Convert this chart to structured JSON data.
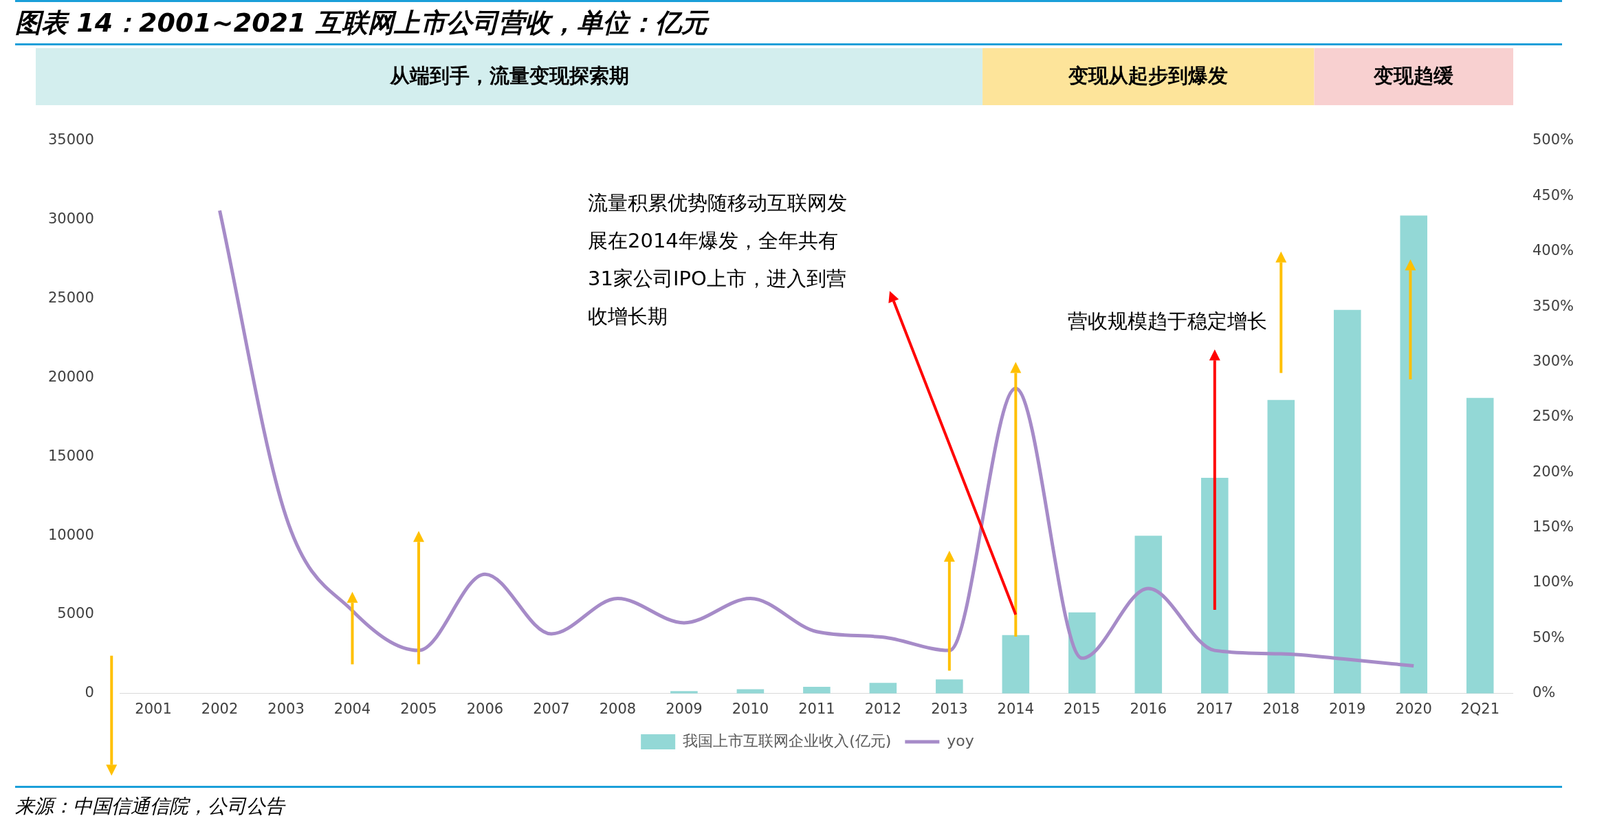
{
  "chart_data": {
    "type": "bar",
    "title": "图表 14：2001~2021 互联网上市公司营收，单位：亿元",
    "categories": [
      "2001",
      "2002",
      "2003",
      "2004",
      "2005",
      "2006",
      "2007",
      "2008",
      "2009",
      "2010",
      "2011",
      "2012",
      "2013",
      "2014",
      "2015",
      "2016",
      "2017",
      "2018",
      "2019",
      "2020",
      "2Q21"
    ],
    "series": [
      {
        "name": "我国上市互联网企业收入(亿元)",
        "color": "#93d8d6",
        "values": [
          null,
          null,
          null,
          null,
          null,
          null,
          null,
          null,
          160,
          270,
          430,
          680,
          900,
          3700,
          5140,
          10000,
          13660,
          18600,
          24300,
          30280,
          18730
        ]
      },
      {
        "name": "yoy",
        "type": "line",
        "axis": "y2",
        "color": "#a68bc8",
        "values": [
          null,
          437,
          160,
          75,
          39,
          108,
          54,
          86,
          64,
          86,
          56,
          51,
          39,
          276,
          32,
          95,
          39,
          36,
          31,
          25,
          null
        ]
      }
    ],
    "ylim": [
      0,
      35000
    ],
    "yticks": [
      0,
      5000,
      10000,
      15000,
      20000,
      25000,
      30000,
      35000
    ],
    "y2lim": [
      0,
      500
    ],
    "y2ticks": [
      {
        "value": 0,
        "label": "0%"
      },
      {
        "value": 50,
        "label": "50%"
      },
      {
        "value": 100,
        "label": "100%"
      },
      {
        "value": 150,
        "label": "150%"
      },
      {
        "value": 200,
        "label": "200%"
      },
      {
        "value": 250,
        "label": "250%"
      },
      {
        "value": 300,
        "label": "300%"
      },
      {
        "value": 350,
        "label": "350%"
      },
      {
        "value": 400,
        "label": "400%"
      },
      {
        "value": 450,
        "label": "450%"
      },
      {
        "value": 500,
        "label": "500%"
      }
    ],
    "annotations": [
      "流量积累优势随移动互联网发展在2014年爆发，全年共有31家公司IPO上市，进入到营收增长期",
      "营收规模趋于稳定增长",
      "来源：中国信通信院，公司公告",
      "从端到手，流量变现探索期",
      "变现从起步到爆发",
      "变现趋缓"
    ],
    "legend": "bottom",
    "marker": "none"
  }
}
